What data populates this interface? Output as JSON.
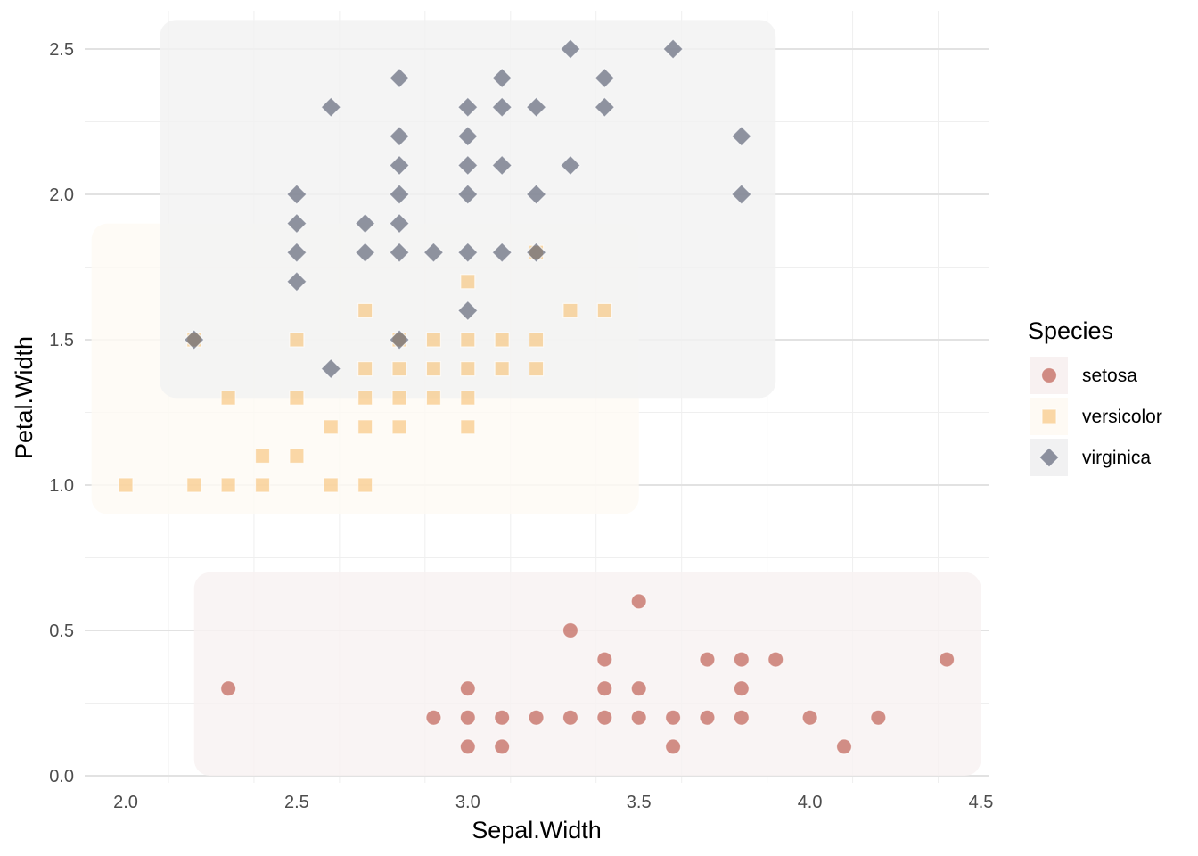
{
  "chart_data": {
    "type": "scatter",
    "title": "",
    "xlabel": "Sepal.Width",
    "ylabel": "Petal.Width",
    "xlim": [
      2.0,
      4.5
    ],
    "ylim": [
      0.0,
      2.5
    ],
    "x_ticks": [
      "2.0",
      "2.5",
      "3.0",
      "3.5",
      "4.0",
      "4.5"
    ],
    "y_ticks": [
      "0.0",
      "0.5",
      "1.0",
      "1.5",
      "2.0",
      "2.5"
    ],
    "grid": true,
    "legend": {
      "title": "Species",
      "position": "right"
    },
    "series": [
      {
        "name": "setosa",
        "marker": "circle",
        "color": "#b5483a",
        "hull": {
          "x": [
            2.2,
            4.5
          ],
          "y": [
            0.0,
            0.7
          ]
        },
        "points": [
          [
            2.3,
            0.3
          ],
          [
            2.9,
            0.2
          ],
          [
            3.0,
            0.3
          ],
          [
            3.0,
            0.2
          ],
          [
            3.0,
            0.1
          ],
          [
            3.1,
            0.2
          ],
          [
            3.1,
            0.1
          ],
          [
            3.2,
            0.2
          ],
          [
            3.3,
            0.2
          ],
          [
            3.3,
            0.5
          ],
          [
            3.4,
            0.4
          ],
          [
            3.4,
            0.3
          ],
          [
            3.4,
            0.2
          ],
          [
            3.5,
            0.6
          ],
          [
            3.5,
            0.3
          ],
          [
            3.5,
            0.2
          ],
          [
            3.6,
            0.2
          ],
          [
            3.6,
            0.1
          ],
          [
            3.7,
            0.4
          ],
          [
            3.7,
            0.2
          ],
          [
            3.8,
            0.4
          ],
          [
            3.8,
            0.3
          ],
          [
            3.8,
            0.2
          ],
          [
            3.9,
            0.4
          ],
          [
            4.0,
            0.2
          ],
          [
            4.1,
            0.1
          ],
          [
            4.2,
            0.2
          ],
          [
            4.4,
            0.4
          ]
        ]
      },
      {
        "name": "versicolor",
        "marker": "square",
        "color": "#f6c071",
        "hull": {
          "x": [
            1.9,
            3.5
          ],
          "y": [
            0.9,
            1.9
          ]
        },
        "points": [
          [
            2.0,
            1.0
          ],
          [
            2.2,
            1.0
          ],
          [
            2.2,
            1.5
          ],
          [
            2.3,
            1.3
          ],
          [
            2.3,
            1.0
          ],
          [
            2.4,
            1.1
          ],
          [
            2.4,
            1.0
          ],
          [
            2.5,
            1.5
          ],
          [
            2.5,
            1.3
          ],
          [
            2.5,
            1.1
          ],
          [
            2.6,
            1.2
          ],
          [
            2.6,
            1.0
          ],
          [
            2.7,
            1.6
          ],
          [
            2.7,
            1.4
          ],
          [
            2.7,
            1.3
          ],
          [
            2.7,
            1.2
          ],
          [
            2.7,
            1.0
          ],
          [
            2.8,
            1.5
          ],
          [
            2.8,
            1.4
          ],
          [
            2.8,
            1.3
          ],
          [
            2.8,
            1.2
          ],
          [
            2.9,
            1.5
          ],
          [
            2.9,
            1.4
          ],
          [
            2.9,
            1.3
          ],
          [
            3.0,
            1.7
          ],
          [
            3.0,
            1.5
          ],
          [
            3.0,
            1.4
          ],
          [
            3.0,
            1.3
          ],
          [
            3.0,
            1.2
          ],
          [
            3.1,
            1.5
          ],
          [
            3.1,
            1.4
          ],
          [
            3.2,
            1.8
          ],
          [
            3.2,
            1.5
          ],
          [
            3.2,
            1.4
          ],
          [
            3.3,
            1.6
          ],
          [
            3.4,
            1.6
          ]
        ]
      },
      {
        "name": "virginica",
        "marker": "diamond",
        "color": "#4a5066",
        "hull": {
          "x": [
            2.1,
            3.9
          ],
          "y": [
            1.3,
            2.6
          ]
        },
        "points": [
          [
            2.2,
            1.5
          ],
          [
            2.5,
            2.0
          ],
          [
            2.5,
            1.9
          ],
          [
            2.5,
            1.8
          ],
          [
            2.5,
            1.7
          ],
          [
            2.6,
            2.3
          ],
          [
            2.6,
            1.4
          ],
          [
            2.7,
            1.9
          ],
          [
            2.7,
            1.8
          ],
          [
            2.8,
            2.4
          ],
          [
            2.8,
            2.2
          ],
          [
            2.8,
            2.1
          ],
          [
            2.8,
            2.0
          ],
          [
            2.8,
            1.9
          ],
          [
            2.8,
            1.8
          ],
          [
            2.8,
            1.5
          ],
          [
            2.9,
            1.8
          ],
          [
            3.0,
            2.3
          ],
          [
            3.0,
            2.2
          ],
          [
            3.0,
            2.1
          ],
          [
            3.0,
            2.0
          ],
          [
            3.0,
            1.8
          ],
          [
            3.0,
            1.6
          ],
          [
            3.1,
            2.4
          ],
          [
            3.1,
            2.3
          ],
          [
            3.1,
            2.1
          ],
          [
            3.1,
            1.8
          ],
          [
            3.2,
            2.3
          ],
          [
            3.2,
            2.0
          ],
          [
            3.2,
            1.8
          ],
          [
            3.3,
            2.5
          ],
          [
            3.3,
            2.1
          ],
          [
            3.4,
            2.4
          ],
          [
            3.4,
            2.3
          ],
          [
            3.6,
            2.5
          ],
          [
            3.8,
            2.2
          ],
          [
            3.8,
            2.0
          ]
        ]
      }
    ]
  }
}
